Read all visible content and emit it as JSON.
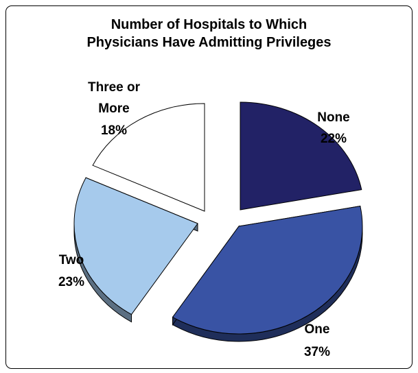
{
  "chart_data": {
    "type": "pie",
    "title_lines": [
      "Number of Hospitals to Which",
      "Physicians Have Admitting Privileges"
    ],
    "slices": [
      {
        "label_lines": [
          "None"
        ],
        "value_label": "22%",
        "value": 22,
        "color": "#222266"
      },
      {
        "label_lines": [
          "One"
        ],
        "value_label": "37%",
        "value": 37,
        "color": "#3953A4"
      },
      {
        "label_lines": [
          "Two"
        ],
        "value_label": "23%",
        "value": 23,
        "color": "#A6CAEC"
      },
      {
        "label_lines": [
          "Three or",
          "More"
        ],
        "value_label": "18%",
        "value": 18,
        "color": "#FFFFFF"
      }
    ],
    "style": "3d-exploded"
  }
}
